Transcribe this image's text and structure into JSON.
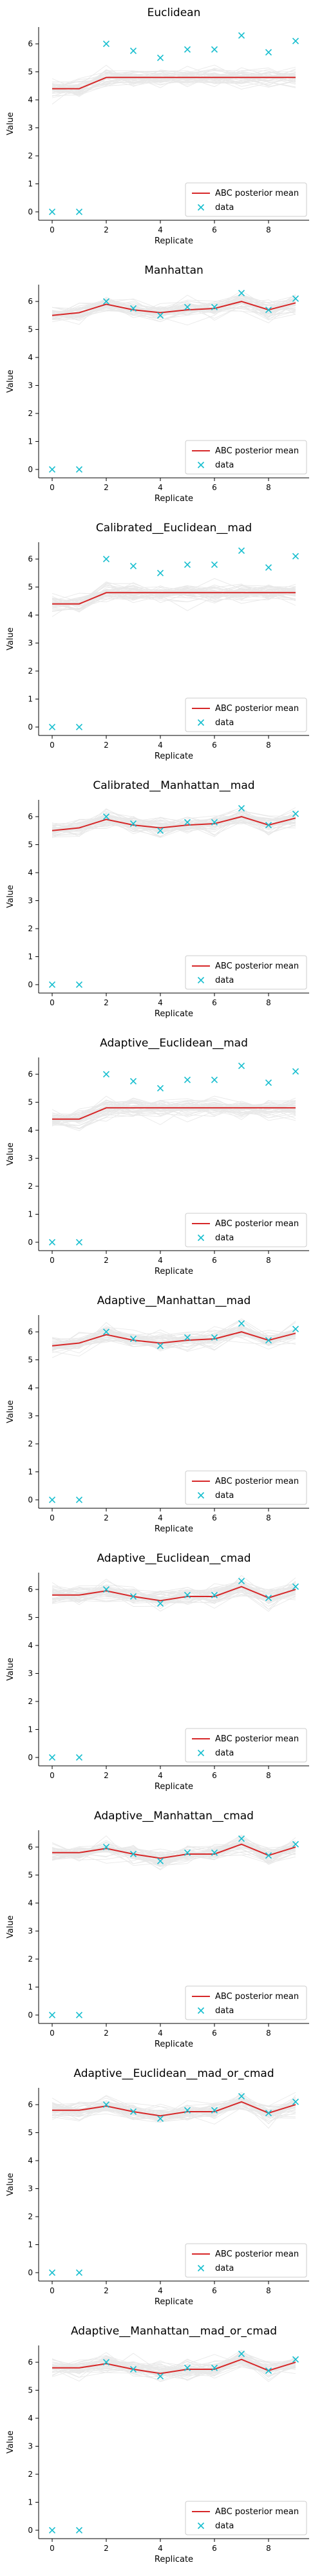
{
  "legend": {
    "mean_label": "ABC posterior mean",
    "data_label": "data"
  },
  "colors": {
    "mean": "#d62728",
    "data": "#17becf",
    "samples": "#9a9a9a"
  },
  "chart_data": [
    {
      "type": "line",
      "title": "Euclidean",
      "xlabel": "Replicate",
      "ylabel": "Value",
      "xlim": [
        -0.5,
        9.5
      ],
      "ylim": [
        -0.3,
        6.6
      ],
      "x": [
        0,
        1,
        2,
        3,
        4,
        5,
        6,
        7,
        8,
        9
      ],
      "xticks": [
        0,
        2,
        4,
        6,
        8
      ],
      "yticks": [
        0,
        1,
        2,
        3,
        4,
        5,
        6
      ],
      "legend_position": "lower right",
      "series": [
        {
          "name": "ABC posterior mean",
          "values": [
            4.4,
            4.4,
            4.8,
            4.8,
            4.8,
            4.8,
            4.8,
            4.8,
            4.8,
            4.8
          ]
        },
        {
          "name": "data",
          "values": [
            0,
            0,
            6.0,
            5.75,
            5.5,
            5.8,
            5.8,
            6.3,
            5.7,
            6.1
          ]
        }
      ]
    },
    {
      "type": "line",
      "title": "Manhattan",
      "xlabel": "Replicate",
      "ylabel": "Value",
      "xlim": [
        -0.5,
        9.5
      ],
      "ylim": [
        -0.3,
        6.6
      ],
      "x": [
        0,
        1,
        2,
        3,
        4,
        5,
        6,
        7,
        8,
        9
      ],
      "xticks": [
        0,
        2,
        4,
        6,
        8
      ],
      "yticks": [
        0,
        1,
        2,
        3,
        4,
        5,
        6
      ],
      "legend_position": "lower right",
      "series": [
        {
          "name": "ABC posterior mean",
          "values": [
            5.5,
            5.6,
            5.9,
            5.7,
            5.6,
            5.7,
            5.75,
            6.0,
            5.7,
            5.95
          ]
        },
        {
          "name": "data",
          "values": [
            0,
            0,
            6.0,
            5.75,
            5.5,
            5.8,
            5.8,
            6.3,
            5.7,
            6.1
          ]
        }
      ]
    },
    {
      "type": "line",
      "title": "Calibrated__Euclidean__mad",
      "xlabel": "Replicate",
      "ylabel": "Value",
      "xlim": [
        -0.5,
        9.5
      ],
      "ylim": [
        -0.3,
        6.6
      ],
      "x": [
        0,
        1,
        2,
        3,
        4,
        5,
        6,
        7,
        8,
        9
      ],
      "xticks": [
        0,
        2,
        4,
        6,
        8
      ],
      "yticks": [
        0,
        1,
        2,
        3,
        4,
        5,
        6
      ],
      "legend_position": "lower right",
      "series": [
        {
          "name": "ABC posterior mean",
          "values": [
            4.4,
            4.4,
            4.8,
            4.8,
            4.8,
            4.8,
            4.8,
            4.8,
            4.8,
            4.8
          ]
        },
        {
          "name": "data",
          "values": [
            0,
            0,
            6.0,
            5.75,
            5.5,
            5.8,
            5.8,
            6.3,
            5.7,
            6.1
          ]
        }
      ]
    },
    {
      "type": "line",
      "title": "Calibrated__Manhattan__mad",
      "xlabel": "Replicate",
      "ylabel": "Value",
      "xlim": [
        -0.5,
        9.5
      ],
      "ylim": [
        -0.3,
        6.6
      ],
      "x": [
        0,
        1,
        2,
        3,
        4,
        5,
        6,
        7,
        8,
        9
      ],
      "xticks": [
        0,
        2,
        4,
        6,
        8
      ],
      "yticks": [
        0,
        1,
        2,
        3,
        4,
        5,
        6
      ],
      "legend_position": "lower right",
      "series": [
        {
          "name": "ABC posterior mean",
          "values": [
            5.5,
            5.6,
            5.9,
            5.7,
            5.6,
            5.7,
            5.75,
            6.0,
            5.7,
            5.95
          ]
        },
        {
          "name": "data",
          "values": [
            0,
            0,
            6.0,
            5.75,
            5.5,
            5.8,
            5.8,
            6.3,
            5.7,
            6.1
          ]
        }
      ]
    },
    {
      "type": "line",
      "title": "Adaptive__Euclidean__mad",
      "xlabel": "Replicate",
      "ylabel": "Value",
      "xlim": [
        -0.5,
        9.5
      ],
      "ylim": [
        -0.3,
        6.6
      ],
      "x": [
        0,
        1,
        2,
        3,
        4,
        5,
        6,
        7,
        8,
        9
      ],
      "xticks": [
        0,
        2,
        4,
        6,
        8
      ],
      "yticks": [
        0,
        1,
        2,
        3,
        4,
        5,
        6
      ],
      "legend_position": "lower right",
      "series": [
        {
          "name": "ABC posterior mean",
          "values": [
            4.4,
            4.4,
            4.8,
            4.8,
            4.8,
            4.8,
            4.8,
            4.8,
            4.8,
            4.8
          ]
        },
        {
          "name": "data",
          "values": [
            0,
            0,
            6.0,
            5.75,
            5.5,
            5.8,
            5.8,
            6.3,
            5.7,
            6.1
          ]
        }
      ]
    },
    {
      "type": "line",
      "title": "Adaptive__Manhattan__mad",
      "xlabel": "Replicate",
      "ylabel": "Value",
      "xlim": [
        -0.5,
        9.5
      ],
      "ylim": [
        -0.3,
        6.6
      ],
      "x": [
        0,
        1,
        2,
        3,
        4,
        5,
        6,
        7,
        8,
        9
      ],
      "xticks": [
        0,
        2,
        4,
        6,
        8
      ],
      "yticks": [
        0,
        1,
        2,
        3,
        4,
        5,
        6
      ],
      "legend_position": "lower right",
      "series": [
        {
          "name": "ABC posterior mean",
          "values": [
            5.5,
            5.6,
            5.9,
            5.7,
            5.6,
            5.7,
            5.75,
            6.0,
            5.7,
            5.95
          ]
        },
        {
          "name": "data",
          "values": [
            0,
            0,
            6.0,
            5.75,
            5.5,
            5.8,
            5.8,
            6.3,
            5.7,
            6.1
          ]
        }
      ]
    },
    {
      "type": "line",
      "title": "Adaptive__Euclidean__cmad",
      "xlabel": "Replicate",
      "ylabel": "Value",
      "xlim": [
        -0.5,
        9.5
      ],
      "ylim": [
        -0.3,
        6.6
      ],
      "x": [
        0,
        1,
        2,
        3,
        4,
        5,
        6,
        7,
        8,
        9
      ],
      "xticks": [
        0,
        2,
        4,
        6,
        8
      ],
      "yticks": [
        0,
        1,
        2,
        3,
        4,
        5,
        6
      ],
      "legend_position": "lower right",
      "series": [
        {
          "name": "ABC posterior mean",
          "values": [
            5.8,
            5.8,
            5.95,
            5.75,
            5.6,
            5.75,
            5.75,
            6.1,
            5.7,
            6.0
          ]
        },
        {
          "name": "data",
          "values": [
            0,
            0,
            6.0,
            5.75,
            5.5,
            5.8,
            5.8,
            6.3,
            5.7,
            6.1
          ]
        }
      ]
    },
    {
      "type": "line",
      "title": "Adaptive__Manhattan__cmad",
      "xlabel": "Replicate",
      "ylabel": "Value",
      "xlim": [
        -0.5,
        9.5
      ],
      "ylim": [
        -0.3,
        6.6
      ],
      "x": [
        0,
        1,
        2,
        3,
        4,
        5,
        6,
        7,
        8,
        9
      ],
      "xticks": [
        0,
        2,
        4,
        6,
        8
      ],
      "yticks": [
        0,
        1,
        2,
        3,
        4,
        5,
        6
      ],
      "legend_position": "lower right",
      "series": [
        {
          "name": "ABC posterior mean",
          "values": [
            5.8,
            5.8,
            5.95,
            5.75,
            5.6,
            5.75,
            5.75,
            6.1,
            5.7,
            6.0
          ]
        },
        {
          "name": "data",
          "values": [
            0,
            0,
            6.0,
            5.75,
            5.5,
            5.8,
            5.8,
            6.3,
            5.7,
            6.1
          ]
        }
      ]
    },
    {
      "type": "line",
      "title": "Adaptive__Euclidean__mad_or_cmad",
      "xlabel": "Replicate",
      "ylabel": "Value",
      "xlim": [
        -0.5,
        9.5
      ],
      "ylim": [
        -0.3,
        6.6
      ],
      "x": [
        0,
        1,
        2,
        3,
        4,
        5,
        6,
        7,
        8,
        9
      ],
      "xticks": [
        0,
        2,
        4,
        6,
        8
      ],
      "yticks": [
        0,
        1,
        2,
        3,
        4,
        5,
        6
      ],
      "legend_position": "lower right",
      "series": [
        {
          "name": "ABC posterior mean",
          "values": [
            5.8,
            5.8,
            5.95,
            5.75,
            5.6,
            5.75,
            5.75,
            6.1,
            5.7,
            6.0
          ]
        },
        {
          "name": "data",
          "values": [
            0,
            0,
            6.0,
            5.75,
            5.5,
            5.8,
            5.8,
            6.3,
            5.7,
            6.1
          ]
        }
      ]
    },
    {
      "type": "line",
      "title": "Adaptive__Manhattan__mad_or_cmad",
      "xlabel": "Replicate",
      "ylabel": "Value",
      "xlim": [
        -0.5,
        9.5
      ],
      "ylim": [
        -0.3,
        6.6
      ],
      "x": [
        0,
        1,
        2,
        3,
        4,
        5,
        6,
        7,
        8,
        9
      ],
      "xticks": [
        0,
        2,
        4,
        6,
        8
      ],
      "yticks": [
        0,
        1,
        2,
        3,
        4,
        5,
        6
      ],
      "legend_position": "lower right",
      "series": [
        {
          "name": "ABC posterior mean",
          "values": [
            5.8,
            5.8,
            5.95,
            5.75,
            5.6,
            5.75,
            5.75,
            6.1,
            5.7,
            6.0
          ]
        },
        {
          "name": "data",
          "values": [
            0,
            0,
            6.0,
            5.75,
            5.5,
            5.8,
            5.8,
            6.3,
            5.7,
            6.1
          ]
        }
      ]
    }
  ]
}
